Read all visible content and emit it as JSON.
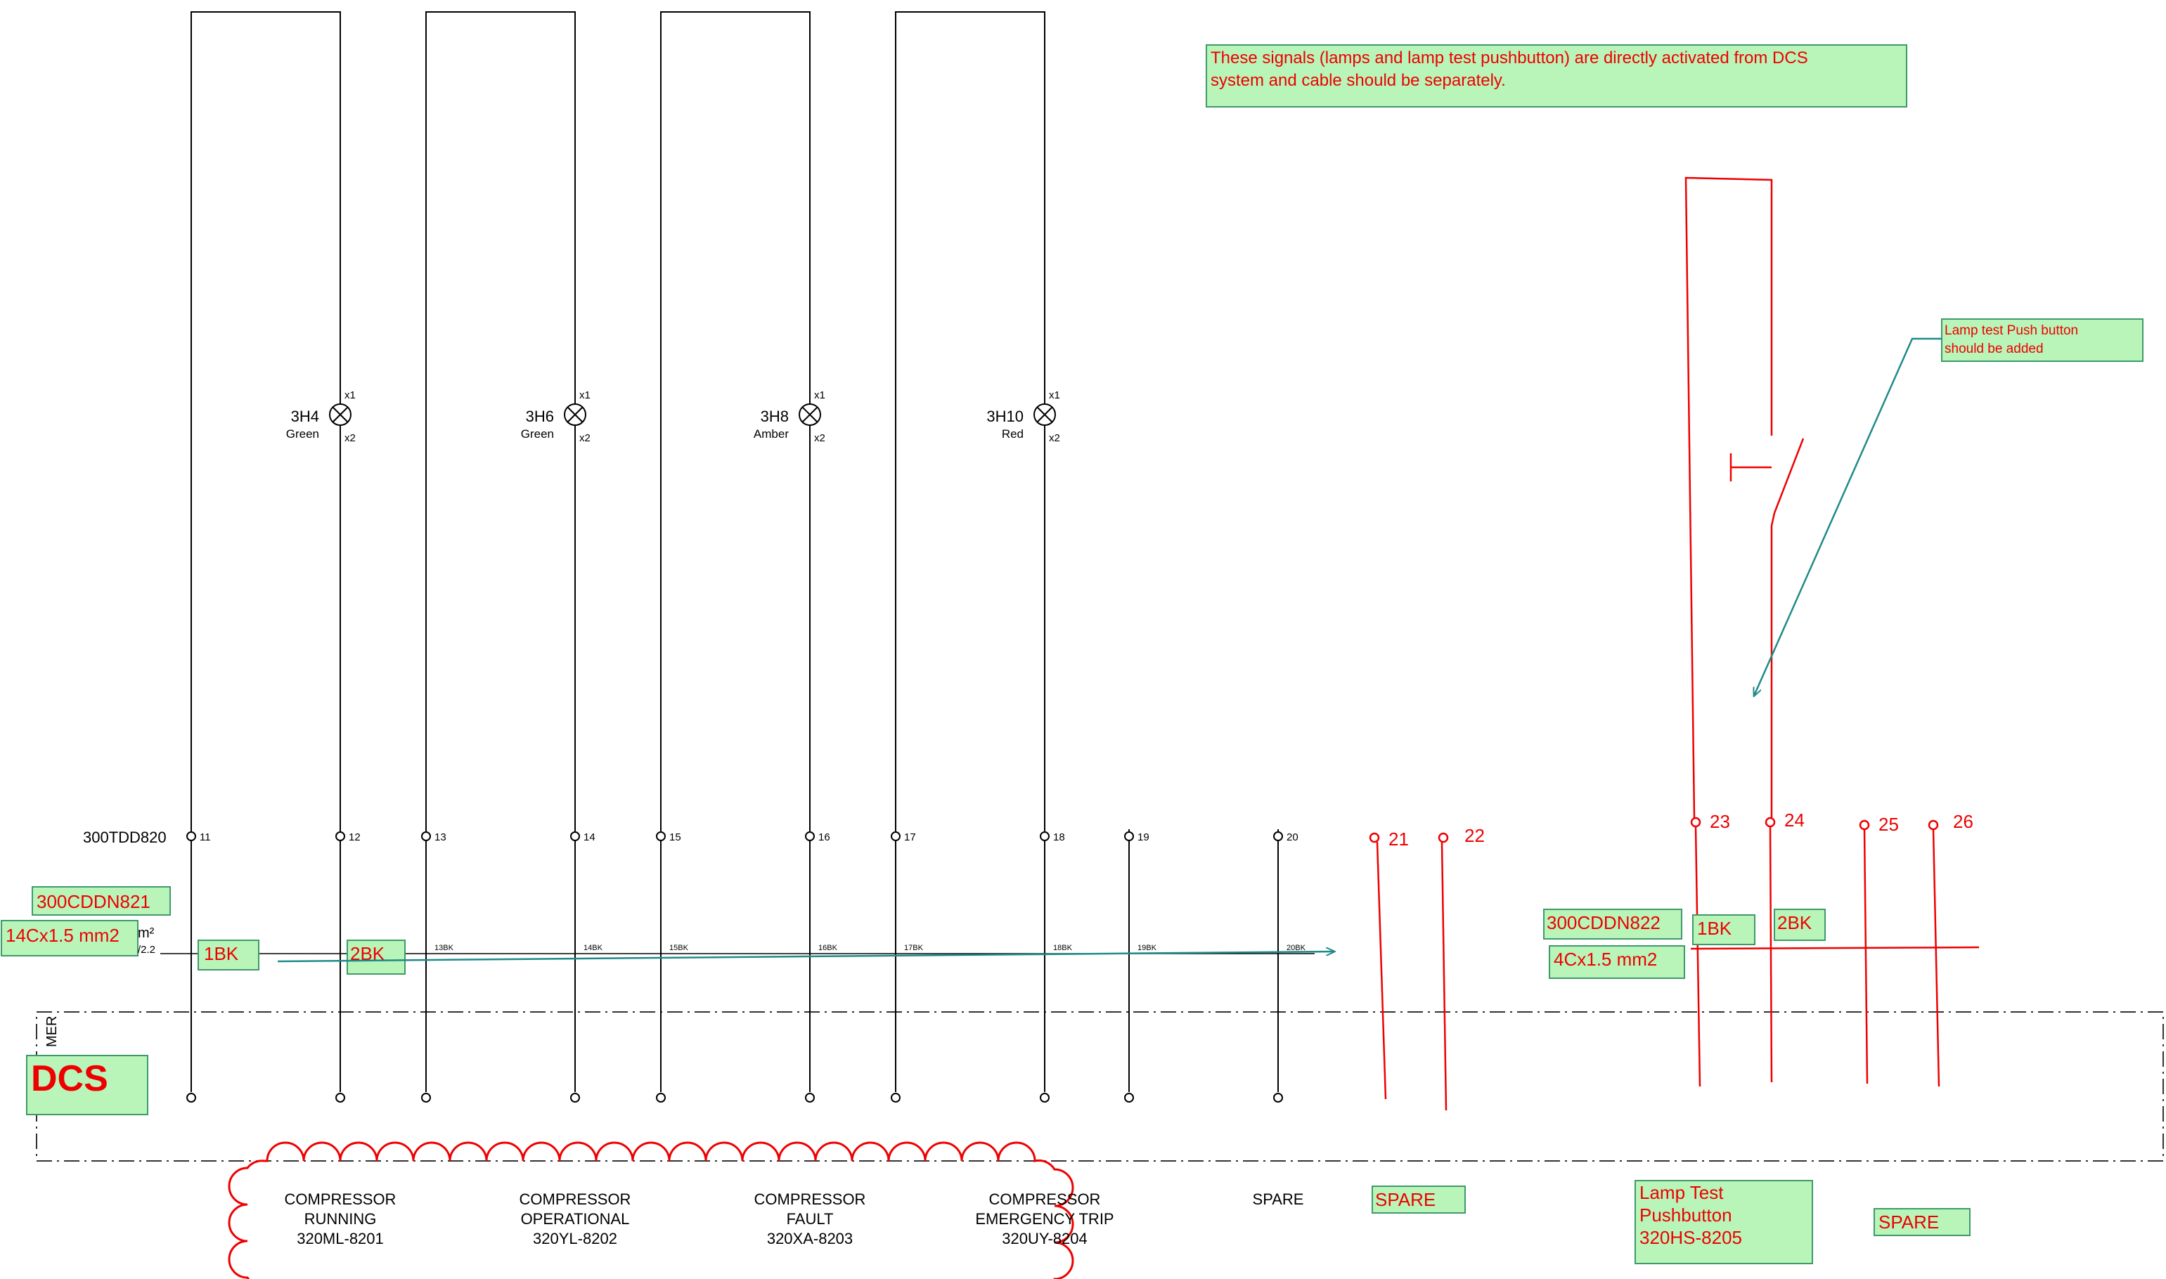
{
  "notes": {
    "dcs_signals_l1": "These signals (lamps and lamp test pushbutton) are directly activated from DCS",
    "dcs_signals_l2": "system and cable should be separately.",
    "lamp_test_l1": "Lamp test Push button",
    "lamp_test_l2": "should be added"
  },
  "terminal_strip": "300TDD820",
  "terminals": [
    "11",
    "12",
    "13",
    "14",
    "15",
    "16",
    "17",
    "18",
    "19",
    "20"
  ],
  "red_terminals": [
    "21",
    "22",
    "23",
    "24",
    "25",
    "26"
  ],
  "wire_labels": [
    "13BK",
    "14BK",
    "15BK",
    "16BK",
    "17BK",
    "18BK",
    "19BK",
    "20BK"
  ],
  "lamps": [
    {
      "tag": "3H4",
      "color": "Green",
      "x1": "x1",
      "x2": "x2"
    },
    {
      "tag": "3H6",
      "color": "Green",
      "x1": "x1",
      "x2": "x2"
    },
    {
      "tag": "3H8",
      "color": "Amber",
      "x1": "x1",
      "x2": "x2"
    },
    {
      "tag": "3H10",
      "color": "Red",
      "x1": "x1",
      "x2": "x2"
    }
  ],
  "cable1": {
    "tag": "300CDDN821",
    "spec": "14Cx1.5 mm2",
    "core1": "1BK",
    "core2": "2BK",
    "suffix": "m²",
    "ref": "/2.2"
  },
  "cable2": {
    "tag": "300CDDN822",
    "spec": "4Cx1.5 mm2",
    "core1": "1BK",
    "core2": "2BK"
  },
  "dcs_label": "DCS",
  "frame_label": "MER",
  "functions": [
    {
      "l1": "COMPRESSOR",
      "l2": "RUNNING",
      "l3": "320ML-8201"
    },
    {
      "l1": "COMPRESSOR",
      "l2": "OPERATIONAL",
      "l3": "320YL-8202"
    },
    {
      "l1": "COMPRESSOR",
      "l2": "FAULT",
      "l3": "320XA-8203"
    },
    {
      "l1": "COMPRESSOR",
      "l2": "EMERGENCY TRIP",
      "l3": "320UY-8204"
    }
  ],
  "spare_black": "SPARE",
  "spare_box1": "SPARE",
  "spare_box2": "SPARE",
  "lamp_test_box": {
    "l1": "Lamp Test",
    "l2": "Pushbutton",
    "l3": "320HS-8205"
  },
  "colors": {
    "annotation_red": "#ee0000",
    "box_fill": "#b9f5b9",
    "box_border": "#3e9a6a",
    "arrow_teal": "#1f8a8a"
  }
}
